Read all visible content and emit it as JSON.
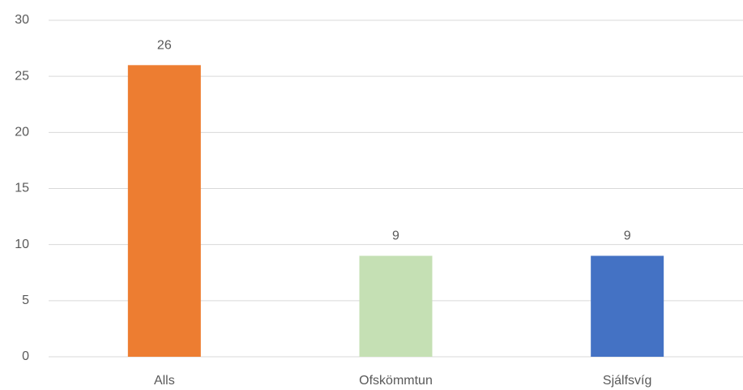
{
  "chart_data": {
    "type": "bar",
    "categories": [
      "Alls",
      "Ofskömmtun",
      "Sjálfsvíg"
    ],
    "values": [
      26,
      9,
      9
    ],
    "colors": [
      "#ed7d31",
      "#c5e0b4",
      "#4472c4"
    ],
    "ylim": [
      0,
      30
    ],
    "yticks": [
      0,
      5,
      10,
      15,
      20,
      25,
      30
    ],
    "grid": true
  }
}
